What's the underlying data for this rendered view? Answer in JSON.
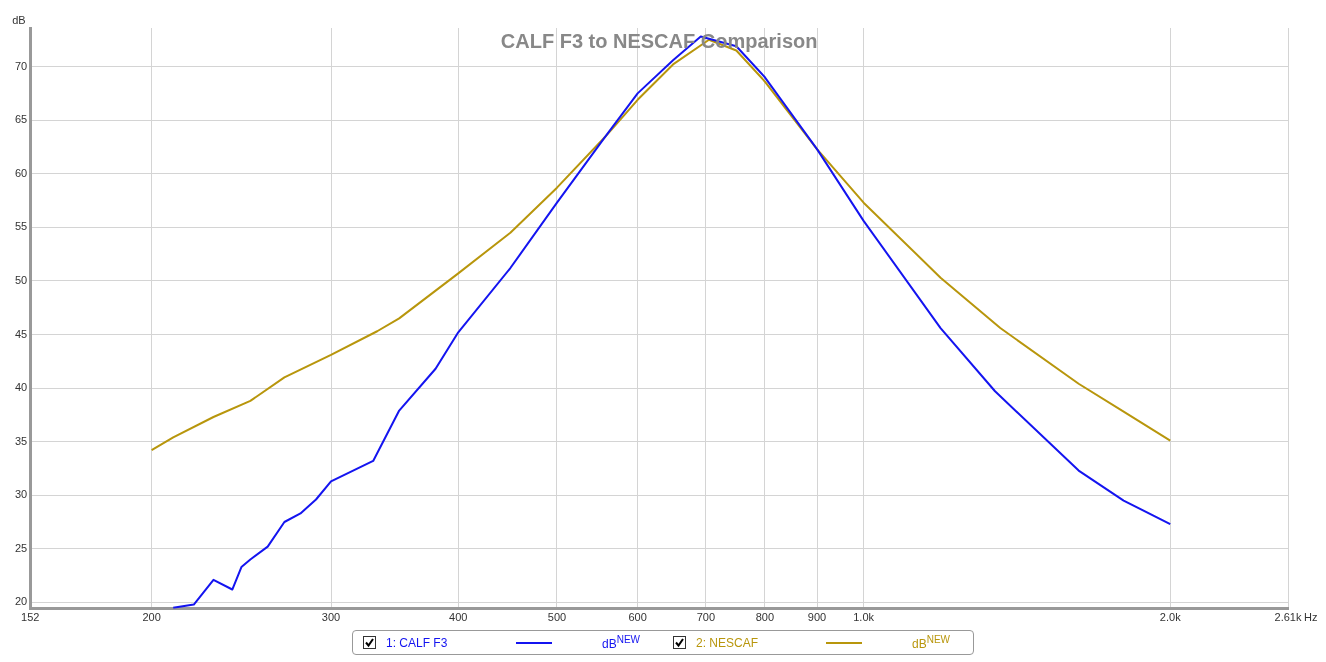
{
  "chart_data": {
    "type": "line",
    "title": "CALF F3 to NESCAF Comparison",
    "xlabel": "Hz",
    "ylabel": "dB",
    "log": "x",
    "grid": true,
    "legend": "bottom",
    "marker": "none",
    "line_style": "solid",
    "xlim": [
      152,
      2610
    ],
    "xticks": [
      {
        "value": 152,
        "label": "152"
      },
      200,
      300,
      400,
      500,
      600,
      700,
      800,
      900,
      {
        "value": 1000,
        "label": "1.0k"
      },
      {
        "value": 2000,
        "label": "2.0k"
      },
      {
        "value": 2610,
        "label": "2.61k"
      }
    ],
    "ylim": [
      19.4,
      73.6
    ],
    "yticks": [
      20,
      25,
      30,
      35,
      40,
      45,
      50,
      55,
      60,
      65,
      70
    ],
    "annotations": [
      "dB$^{NEW}$",
      "dB$^{NEW}$"
    ],
    "series": [
      {
        "name": "1: CALF F3",
        "color": "#1414f0",
        "x": [
          210,
          220,
          230,
          240,
          245,
          250,
          260,
          270,
          280,
          290,
          300,
          330,
          350,
          380,
          400,
          450,
          500,
          557,
          600,
          650,
          692,
          750,
          800,
          900,
          1000,
          1190,
          1346,
          1626,
          1800,
          2000
        ],
        "values": [
          19.5,
          19.8,
          22.1,
          21.2,
          23.3,
          24.0,
          25.2,
          27.5,
          28.3,
          29.6,
          31.3,
          33.2,
          37.9,
          41.8,
          45.2,
          51.2,
          57.3,
          63.4,
          67.5,
          70.6,
          72.8,
          71.9,
          69.0,
          62.3,
          55.6,
          45.6,
          39.7,
          32.3,
          29.5,
          27.3
        ]
      },
      {
        "name": "2: NESCAF",
        "color": "#b8960c",
        "x": [
          200,
          210,
          230,
          250,
          270,
          300,
          333,
          350,
          400,
          450,
          500,
          557,
          600,
          650,
          705,
          750,
          800,
          900,
          1000,
          1190,
          1362,
          1626,
          1800,
          2000
        ],
        "values": [
          34.2,
          35.4,
          37.3,
          38.8,
          41.0,
          43.1,
          45.3,
          46.5,
          50.7,
          54.5,
          58.7,
          63.4,
          66.9,
          70.2,
          72.5,
          71.5,
          68.6,
          62.3,
          57.3,
          50.3,
          45.6,
          40.4,
          37.8,
          35.1
        ]
      }
    ]
  }
}
